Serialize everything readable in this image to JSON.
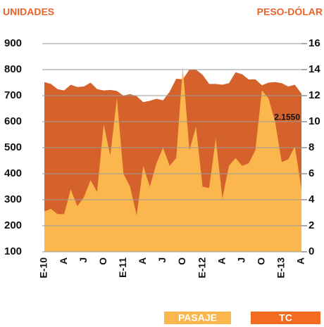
{
  "chart_data": {
    "type": "area",
    "y_axis_label": "UNIDADES",
    "y2_axis_label": "PESO-DÓLAR",
    "categories": [
      "E-10",
      null,
      null,
      "A",
      null,
      null,
      "J",
      null,
      null,
      "O",
      null,
      null,
      "E-11",
      null,
      null,
      "A",
      null,
      null,
      "J",
      null,
      null,
      "O",
      null,
      null,
      "E-12",
      null,
      null,
      "A",
      null,
      null,
      "J",
      null,
      null,
      "O",
      null,
      null,
      "E-13",
      null,
      null,
      "A"
    ],
    "series": [
      {
        "name": "TC",
        "color": "#d4622a",
        "axis": "y2",
        "values": [
          13.04,
          12.9,
          12.5,
          12.4,
          12.84,
          12.66,
          12.7,
          13.0,
          12.5,
          12.4,
          12.44,
          12.36,
          12.0,
          12.12,
          11.96,
          11.5,
          11.6,
          11.76,
          11.64,
          12.3,
          13.3,
          13.26,
          14.0,
          14.0,
          13.6,
          12.9,
          12.9,
          12.84,
          12.96,
          13.8,
          13.64,
          13.24,
          13.26,
          12.8,
          13.0,
          13.04,
          12.96,
          12.7,
          12.84,
          12.155
        ],
        "end_label": "12.1550"
      },
      {
        "name": "PASAJE",
        "color": "#fbb64e",
        "values": [
          255,
          265,
          245,
          245,
          340,
          275,
          310,
          375,
          330,
          590,
          470,
          690,
          400,
          350,
          240,
          430,
          350,
          440,
          500,
          430,
          460,
          810,
          490,
          580,
          350,
          345,
          535,
          305,
          430,
          460,
          430,
          440,
          490,
          720,
          690,
          600,
          445,
          455,
          505,
          340
        ]
      }
    ],
    "legend_colors": {
      "PASAJE": "#fbb64e",
      "TC": "#f26b21"
    },
    "ylim": [
      100,
      900
    ],
    "yticks": [
      100,
      200,
      300,
      400,
      500,
      600,
      700,
      800,
      900
    ],
    "y2lim": [
      0,
      16
    ],
    "y2ticks": [
      0,
      2,
      4,
      6,
      8,
      10,
      12,
      14,
      16
    ],
    "grid": true
  }
}
